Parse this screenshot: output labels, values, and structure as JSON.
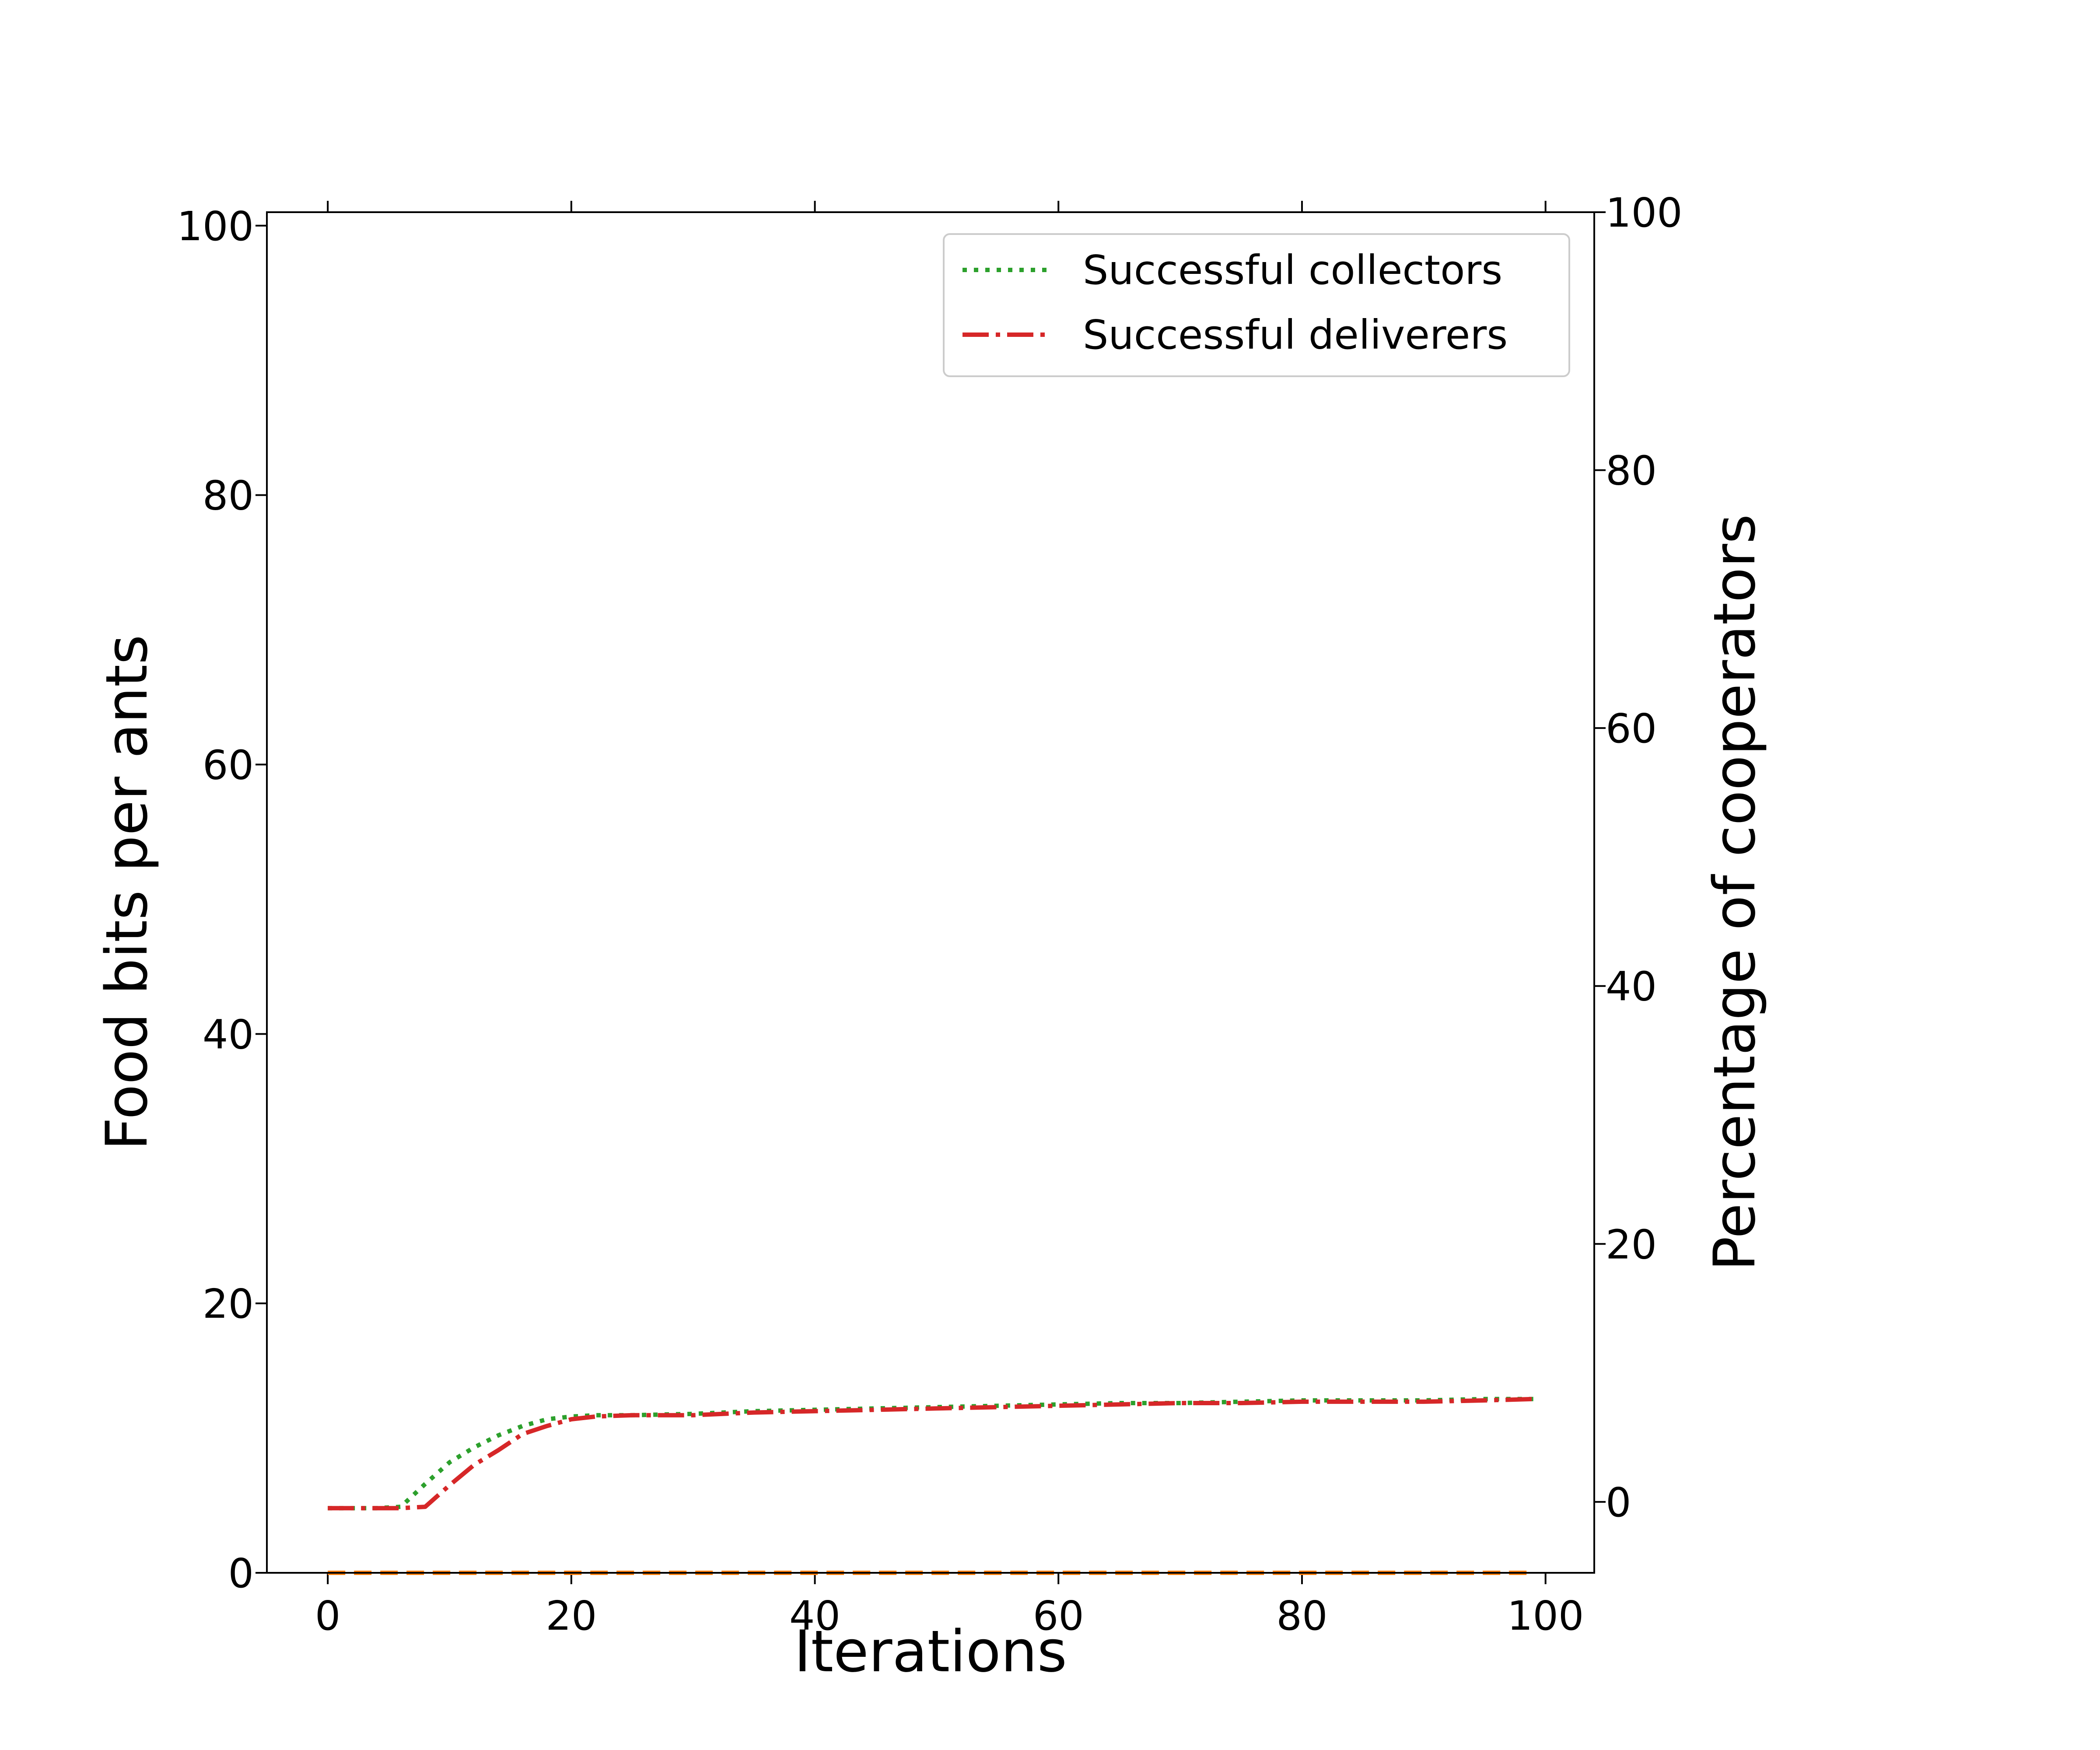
{
  "chart_data": {
    "type": "line",
    "xlabel": "Iterations",
    "ylabel": "Food bits per ants",
    "y2label": "Percentage of cooperators",
    "xlim": [
      -5,
      104
    ],
    "ylim": [
      0,
      101
    ],
    "y2lim": [
      -5.5,
      100
    ],
    "x_ticks": [
      0,
      20,
      40,
      60,
      80,
      100
    ],
    "y_ticks": [
      0,
      20,
      40,
      60,
      80,
      100
    ],
    "y2_ticks": [
      0,
      20,
      40,
      60,
      80,
      100
    ],
    "grid": false,
    "legend_position": "top-right",
    "series": [
      {
        "name": "Successful collectors",
        "axis": "left",
        "color": "#2ca02c",
        "style": "dotted",
        "x": [
          0,
          2,
          4,
          6,
          8,
          10,
          12,
          14,
          16,
          18,
          20,
          22,
          25,
          30,
          35,
          40,
          45,
          50,
          55,
          60,
          65,
          70,
          75,
          80,
          85,
          90,
          95,
          99
        ],
        "y": [
          4.8,
          4.8,
          4.8,
          4.9,
          6.6,
          8.2,
          9.3,
          10.2,
          10.9,
          11.4,
          11.6,
          11.7,
          11.7,
          11.8,
          12.0,
          12.1,
          12.2,
          12.3,
          12.4,
          12.5,
          12.6,
          12.6,
          12.7,
          12.8,
          12.8,
          12.8,
          12.9,
          12.9
        ]
      },
      {
        "name": "Successful deliverers",
        "axis": "left",
        "color": "#d62728",
        "style": "dashdot",
        "x": [
          0,
          2,
          4,
          6,
          8,
          10,
          12,
          14,
          16,
          18,
          20,
          22,
          25,
          30,
          35,
          40,
          45,
          50,
          55,
          60,
          65,
          70,
          75,
          80,
          85,
          90,
          95,
          99
        ],
        "y": [
          4.8,
          4.8,
          4.8,
          4.8,
          4.9,
          6.5,
          8.0,
          9.1,
          10.3,
          10.9,
          11.4,
          11.6,
          11.7,
          11.7,
          11.9,
          12.0,
          12.1,
          12.2,
          12.3,
          12.4,
          12.5,
          12.6,
          12.6,
          12.7,
          12.7,
          12.7,
          12.8,
          12.9
        ]
      },
      {
        "axis": "left",
        "color": "#ff7f0e",
        "style": "dashed",
        "x": [
          0,
          99
        ],
        "y": [
          0,
          0
        ]
      }
    ]
  }
}
